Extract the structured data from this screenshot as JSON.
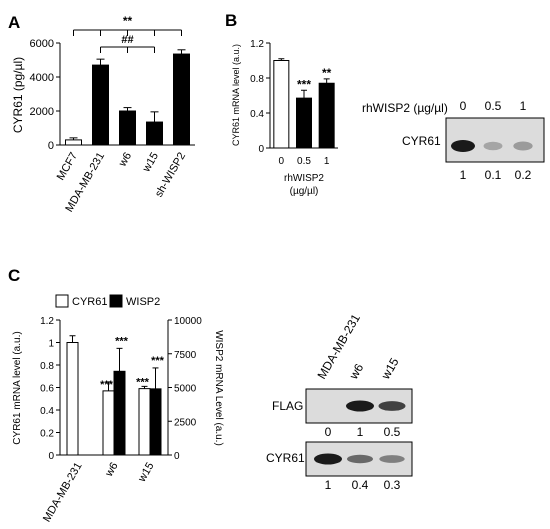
{
  "panels": {
    "A": "A",
    "B": "B",
    "C": "C"
  },
  "colors": {
    "bar": "#000000",
    "open": "#ffffff",
    "blot_bg": "#dcdcdc",
    "blot_band": "#1a1a1a"
  },
  "chart_data": [
    {
      "panel": "A",
      "type": "bar",
      "ylabel": "CYR61 (pg/µl)",
      "ylim": [
        0,
        6000
      ],
      "yticks": [
        "0",
        "2000",
        "4000",
        "6000"
      ],
      "categories": [
        "MCF7",
        "MDA-MB-231",
        "w6",
        "w15",
        "sh-WISP2"
      ],
      "values": [
        300,
        4700,
        2000,
        1350,
        5350
      ],
      "errors": [
        120,
        350,
        200,
        600,
        250
      ],
      "fills": [
        "open",
        "solid",
        "solid",
        "solid",
        "solid"
      ],
      "annotations": [
        "**",
        "##"
      ]
    },
    {
      "panel": "B",
      "type": "bar",
      "ylabel": "CYR61 mRNA level (a.u.)",
      "xlabel": "rhWISP2 (µg/µl)",
      "ylim": [
        0,
        1.2
      ],
      "yticks": [
        "0",
        "0.4",
        "0.8",
        "1.2"
      ],
      "categories": [
        "0",
        "0.5",
        "1"
      ],
      "values": [
        1.0,
        0.57,
        0.74
      ],
      "errors": [
        0.02,
        0.09,
        0.05
      ],
      "fills": [
        "open",
        "solid",
        "solid"
      ],
      "stars": [
        "",
        "***",
        "**"
      ]
    },
    {
      "panel": "C",
      "type": "bar",
      "ylabel": "CYR61 mRNA level (a.u.)",
      "y2label": "WISP2 mRNA Level (a.u.)",
      "ylim": [
        0,
        1.2
      ],
      "yticks": [
        "0",
        "0.2",
        "0.4",
        "0.6",
        "0.8",
        "1",
        "1.2"
      ],
      "y2lim": [
        0,
        10000
      ],
      "y2ticks": [
        "0",
        "2500",
        "5000",
        "7500",
        "10000"
      ],
      "categories": [
        "MDA-MB-231",
        "w6",
        "w15"
      ],
      "series": [
        {
          "name": "CYR61",
          "values": [
            1.0,
            0.57,
            0.59
          ],
          "errors": [
            0.06,
            0.08,
            0.02
          ],
          "stars": [
            "",
            "***",
            "***"
          ]
        },
        {
          "name": "WISP2",
          "values": [
            0,
            6200,
            4900
          ],
          "errors": [
            0,
            1700,
            1550
          ],
          "stars": [
            "",
            "***",
            "***"
          ]
        }
      ]
    }
  ],
  "blot_b": {
    "header_label": "rhWISP2 (µg/µl)",
    "header_values": [
      "0",
      "0.5",
      "1"
    ],
    "row_label": "CYR61",
    "quant": [
      "1",
      "0.1",
      "0.2"
    ],
    "bands": [
      1.0,
      0.15,
      0.22
    ]
  },
  "blot_c": {
    "lanes": [
      "MDA-MB-231",
      "w6",
      "w15"
    ],
    "rows": [
      {
        "label": "FLAG",
        "bands": [
          0,
          1.0,
          0.75
        ],
        "quant": [
          "0",
          "1",
          "0.5"
        ]
      },
      {
        "label": "CYR61",
        "bands": [
          1.0,
          0.5,
          0.35
        ],
        "quant": [
          "1",
          "0.4",
          "0.3"
        ]
      }
    ]
  }
}
